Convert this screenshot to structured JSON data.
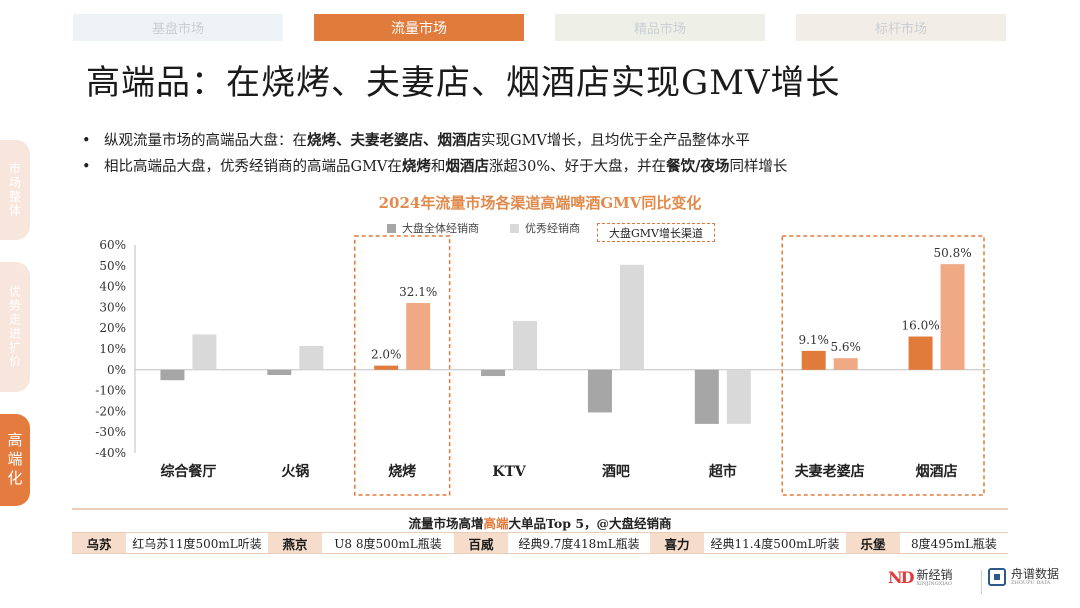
{
  "top_tabs": [
    "基盘市场",
    "流量市场",
    "精品市场",
    "标杆市场"
  ],
  "side_tabs": [
    "市场整体",
    "优势走进扩价",
    "高端化"
  ],
  "title": "高端品：在烧烤、夫妻店、烟酒店实现GMV增长",
  "bullets": [
    {
      "bullet": "•",
      "segments": [
        {
          "text": "纵观流量市场的高端品大盘：在",
          "bold": false
        },
        {
          "text": "烧烤、夫妻老婆店、烟酒店",
          "bold": true
        },
        {
          "text": "实现GMV增长，且均优于全产品整体水平",
          "bold": false
        }
      ]
    },
    {
      "bullet": "•",
      "segments": [
        {
          "text": "相比高端品大盘，优秀经销商的高端品GMV在",
          "bold": false
        },
        {
          "text": "烧烤",
          "bold": true
        },
        {
          "text": "和",
          "bold": false
        },
        {
          "text": "烟酒店",
          "bold": true
        },
        {
          "text": "涨超30%、好于大盘，并在",
          "bold": false
        },
        {
          "text": "餐饮/夜场",
          "bold": true
        },
        {
          "text": "同样增长",
          "bold": false
        }
      ]
    }
  ],
  "chart_annotation": "大盘GMV增长渠道",
  "chart_data": {
    "type": "bar",
    "title": "2024年流量市场各渠道高端啤酒GMV同比变化",
    "categories": [
      "综合餐厅",
      "火锅",
      "烧烤",
      "KTV",
      "酒吧",
      "超市",
      "夫妻老婆店",
      "烟酒店"
    ],
    "series": [
      {
        "name": "大盘全体经销商",
        "values": [
          -5.0,
          -2.5,
          2.0,
          -3.0,
          -20.5,
          -26.0,
          9.1,
          16.0
        ]
      },
      {
        "name": "优秀经销商",
        "values": [
          17.0,
          11.5,
          32.1,
          23.5,
          50.5,
          -26.0,
          5.6,
          50.8
        ]
      }
    ],
    "data_labels": [
      {
        "category": 2,
        "series": 0,
        "text": "2.0%"
      },
      {
        "category": 2,
        "series": 1,
        "text": "32.1%"
      },
      {
        "category": 6,
        "series": 0,
        "text": "9.1%"
      },
      {
        "category": 6,
        "series": 1,
        "text": "5.6%"
      },
      {
        "category": 7,
        "series": 0,
        "text": "16.0%"
      },
      {
        "category": 7,
        "series": 1,
        "text": "50.8%"
      }
    ],
    "highlighted_categories": [
      2,
      6,
      7
    ],
    "y_ticks": [
      "60%",
      "50%",
      "40%",
      "30%",
      "20%",
      "10%",
      "0%",
      "-10%",
      "-20%",
      "-30%",
      "-40%"
    ],
    "ylim": [
      -40,
      60
    ],
    "legend_position": "top",
    "colors": {
      "base_normal": "#a6a6a6",
      "top_normal": "#d9d9d9",
      "base_highlight": "#e07b3c",
      "top_highlight": "#f0a985"
    }
  },
  "table": {
    "title_pre": "流量市场高增",
    "title_hl": "高端",
    "title_post": "大单品Top 5，@大盘经销商",
    "items": [
      {
        "brand": "乌苏",
        "product": "红乌苏11度500mL听装"
      },
      {
        "brand": "燕京",
        "product": "U8 8度500mL瓶装"
      },
      {
        "brand": "百威",
        "product": "经典9.7度418mL瓶装"
      },
      {
        "brand": "喜力",
        "product": "经典11.4度500mL听装"
      },
      {
        "brand": "乐堡",
        "product": "8度495mL瓶装"
      }
    ]
  },
  "logos": {
    "left_mark": "ND",
    "left_name": "新经销",
    "left_sub": "XINJINGXIAO",
    "right_name": "舟谱数据",
    "right_sub": "ZHOUPU DATA"
  }
}
